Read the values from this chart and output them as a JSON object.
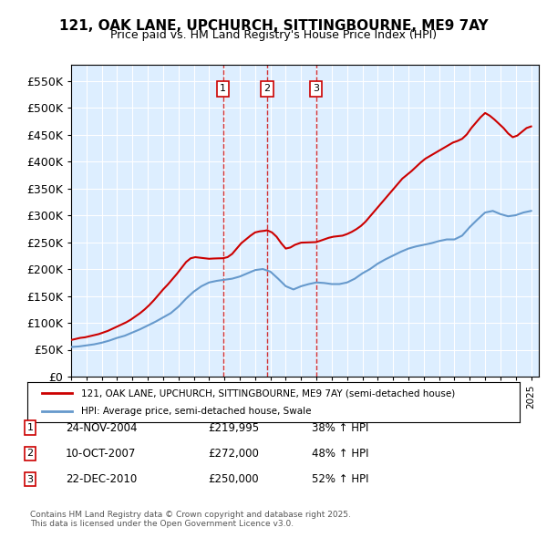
{
  "title": "121, OAK LANE, UPCHURCH, SITTINGBOURNE, ME9 7AY",
  "subtitle": "Price paid vs. HM Land Registry's House Price Index (HPI)",
  "legend_line1": "121, OAK LANE, UPCHURCH, SITTINGBOURNE, ME9 7AY (semi-detached house)",
  "legend_line2": "HPI: Average price, semi-detached house, Swale",
  "footer": "Contains HM Land Registry data © Crown copyright and database right 2025.\nThis data is licensed under the Open Government Licence v3.0.",
  "sale_events": [
    {
      "label": "1",
      "date": "24-NOV-2004",
      "price": "£219,995",
      "change": "38% ↑ HPI",
      "x_year": 2004.9
    },
    {
      "label": "2",
      "date": "10-OCT-2007",
      "price": "£272,000",
      "change": "48% ↑ HPI",
      "x_year": 2007.78
    },
    {
      "label": "3",
      "date": "22-DEC-2010",
      "price": "£250,000",
      "change": "52% ↑ HPI",
      "x_year": 2010.97
    }
  ],
  "red_color": "#cc0000",
  "blue_color": "#6699cc",
  "background_color": "#ddeeff",
  "ylim": [
    0,
    580000
  ],
  "xlim_start": 1995.0,
  "xlim_end": 2025.5,
  "hpi_data": {
    "years": [
      1995.0,
      1995.5,
      1996.0,
      1996.5,
      1997.0,
      1997.5,
      1998.0,
      1998.5,
      1999.0,
      1999.5,
      2000.0,
      2000.5,
      2001.0,
      2001.5,
      2002.0,
      2002.5,
      2003.0,
      2003.5,
      2004.0,
      2004.5,
      2005.0,
      2005.5,
      2006.0,
      2006.5,
      2007.0,
      2007.5,
      2008.0,
      2008.5,
      2009.0,
      2009.5,
      2010.0,
      2010.5,
      2011.0,
      2011.5,
      2012.0,
      2012.5,
      2013.0,
      2013.5,
      2014.0,
      2014.5,
      2015.0,
      2015.5,
      2016.0,
      2016.5,
      2017.0,
      2017.5,
      2018.0,
      2018.5,
      2019.0,
      2019.5,
      2020.0,
      2020.5,
      2021.0,
      2021.5,
      2022.0,
      2022.5,
      2023.0,
      2023.5,
      2024.0,
      2024.5,
      2025.0
    ],
    "values": [
      55000,
      56000,
      58000,
      60000,
      63000,
      67000,
      72000,
      76000,
      82000,
      88000,
      95000,
      102000,
      110000,
      118000,
      130000,
      145000,
      158000,
      168000,
      175000,
      178000,
      180000,
      182000,
      186000,
      192000,
      198000,
      200000,
      195000,
      182000,
      168000,
      162000,
      168000,
      172000,
      175000,
      174000,
      172000,
      172000,
      175000,
      182000,
      192000,
      200000,
      210000,
      218000,
      225000,
      232000,
      238000,
      242000,
      245000,
      248000,
      252000,
      255000,
      255000,
      262000,
      278000,
      292000,
      305000,
      308000,
      302000,
      298000,
      300000,
      305000,
      308000
    ]
  },
  "property_data": {
    "years": [
      1995.0,
      1995.3,
      1995.6,
      1995.9,
      1996.2,
      1996.5,
      1996.8,
      1997.1,
      1997.4,
      1997.7,
      1998.0,
      1998.3,
      1998.6,
      1998.9,
      1999.2,
      1999.5,
      1999.8,
      2000.1,
      2000.4,
      2000.7,
      2001.0,
      2001.3,
      2001.6,
      2001.9,
      2002.2,
      2002.5,
      2002.8,
      2003.1,
      2003.4,
      2003.7,
      2004.0,
      2004.3,
      2004.6,
      2004.9,
      2005.2,
      2005.5,
      2005.8,
      2006.1,
      2006.4,
      2006.7,
      2007.0,
      2007.3,
      2007.6,
      2007.78,
      2008.1,
      2008.4,
      2008.7,
      2009.0,
      2009.3,
      2009.6,
      2009.9,
      2010.0,
      2010.5,
      2010.97,
      2011.2,
      2011.5,
      2011.8,
      2012.1,
      2012.4,
      2012.7,
      2013.0,
      2013.3,
      2013.6,
      2013.9,
      2014.2,
      2014.5,
      2014.8,
      2015.1,
      2015.4,
      2015.7,
      2016.0,
      2016.3,
      2016.6,
      2016.9,
      2017.2,
      2017.5,
      2017.8,
      2018.1,
      2018.4,
      2018.7,
      2019.0,
      2019.3,
      2019.6,
      2019.9,
      2020.2,
      2020.5,
      2020.8,
      2021.1,
      2021.4,
      2021.7,
      2022.0,
      2022.3,
      2022.6,
      2022.9,
      2023.2,
      2023.5,
      2023.8,
      2024.1,
      2024.4,
      2024.7,
      2025.0
    ],
    "values": [
      68000,
      70000,
      72000,
      73000,
      75000,
      77000,
      79000,
      82000,
      85000,
      89000,
      93000,
      97000,
      101000,
      106000,
      112000,
      118000,
      125000,
      133000,
      142000,
      152000,
      162000,
      171000,
      181000,
      191000,
      202000,
      213000,
      220000,
      222000,
      221000,
      220000,
      219000,
      219500,
      219800,
      219995,
      222000,
      228000,
      238000,
      248000,
      255000,
      262000,
      268000,
      270000,
      271000,
      272000,
      268000,
      260000,
      248000,
      238000,
      240000,
      245000,
      248000,
      249000,
      249500,
      250000,
      252000,
      255000,
      258000,
      260000,
      261000,
      262000,
      265000,
      269000,
      274000,
      280000,
      288000,
      298000,
      308000,
      318000,
      328000,
      338000,
      348000,
      358000,
      368000,
      375000,
      382000,
      390000,
      398000,
      405000,
      410000,
      415000,
      420000,
      425000,
      430000,
      435000,
      438000,
      442000,
      450000,
      462000,
      472000,
      482000,
      490000,
      485000,
      478000,
      470000,
      462000,
      452000,
      445000,
      448000,
      455000,
      462000,
      465000
    ]
  }
}
